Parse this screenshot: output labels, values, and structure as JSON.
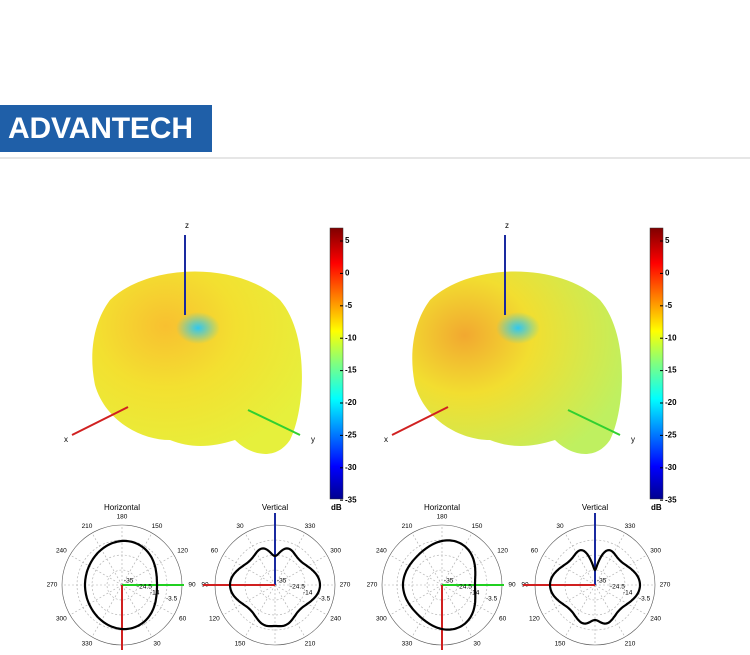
{
  "header": {
    "logo": "ADVANTECH"
  },
  "panels": [
    {
      "axes": {
        "x": "x",
        "y": "y",
        "z": "z"
      },
      "colorbar": {
        "ticks": [
          "5",
          "0",
          "-5",
          "-10",
          "-15",
          "-20",
          "-25",
          "-30",
          "-35"
        ],
        "unit": "dB"
      },
      "polar": [
        {
          "title": "Horizontal",
          "angles": [
            "180",
            "150",
            "120",
            "90",
            "60",
            "30",
            "330",
            "300",
            "270",
            "240",
            "210"
          ],
          "radial": [
            "-35",
            "-24.5",
            "-14",
            "-3.5"
          ]
        },
        {
          "title": "Vertical",
          "angles": [
            "330",
            "300",
            "270",
            "240",
            "210",
            "150",
            "120",
            "90",
            "60",
            "30"
          ],
          "radial": [
            "-35",
            "-24.5",
            "-14",
            "-3.5"
          ]
        }
      ]
    },
    {
      "axes": {
        "x": "x",
        "y": "y",
        "z": "z"
      },
      "colorbar": {
        "ticks": [
          "5",
          "0",
          "-5",
          "-10",
          "-15",
          "-20",
          "-25",
          "-30",
          "-35"
        ],
        "unit": "dB"
      },
      "polar": [
        {
          "title": "Horizontal",
          "angles": [
            "180",
            "150",
            "120",
            "90",
            "60",
            "30",
            "330",
            "300",
            "270",
            "240",
            "210"
          ],
          "radial": [
            "-35",
            "-24.5",
            "-14",
            "-3.5"
          ]
        },
        {
          "title": "Vertical",
          "angles": [
            "330",
            "300",
            "270",
            "240",
            "210",
            "150",
            "120",
            "90",
            "60",
            "30"
          ],
          "radial": [
            "-35",
            "-24.5",
            "-14",
            "-3.5"
          ]
        }
      ]
    }
  ]
}
